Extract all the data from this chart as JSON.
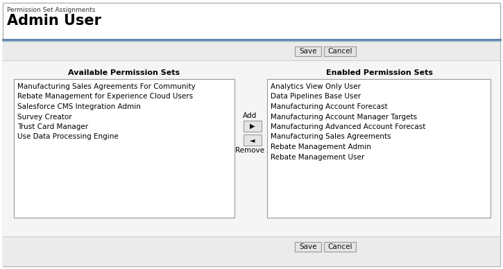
{
  "title_label": "Permission Set Assignments",
  "title": "Admin User",
  "bg_outer": "#ffffff",
  "bg_content": "#f0f0f0",
  "bg_listbox": "#ffffff",
  "border_color": "#aaaaaa",
  "divider_dark": "#5a7fa8",
  "divider_light": "#8aaac8",
  "available_header": "Available Permission Sets",
  "enabled_header": "Enabled Permission Sets",
  "available_items": [
    "Manufacturing Sales Agreements For Community",
    "Rebate Management for Experience Cloud Users",
    "Salesforce CMS Integration Admin",
    "Survey Creator",
    "Trust Card Manager",
    "Use Data Processing Engine"
  ],
  "enabled_items": [
    "Analytics View Only User",
    "Data Pipelines Base User",
    "Manufacturing Account Forecast",
    "Manufacturing Account Manager Targets",
    "Manufacturing Advanced Account Forecast",
    "Manufacturing Sales Agreements",
    "Rebate Management Admin",
    "Rebate Management User"
  ],
  "add_label": "Add",
  "remove_label": "Remove",
  "save_label": "Save",
  "cancel_label": "Cancel",
  "title_label_fontsize": 6.5,
  "title_fontsize": 15,
  "header_fontsize": 8,
  "item_fontsize": 7.5,
  "button_fontsize": 7.5
}
